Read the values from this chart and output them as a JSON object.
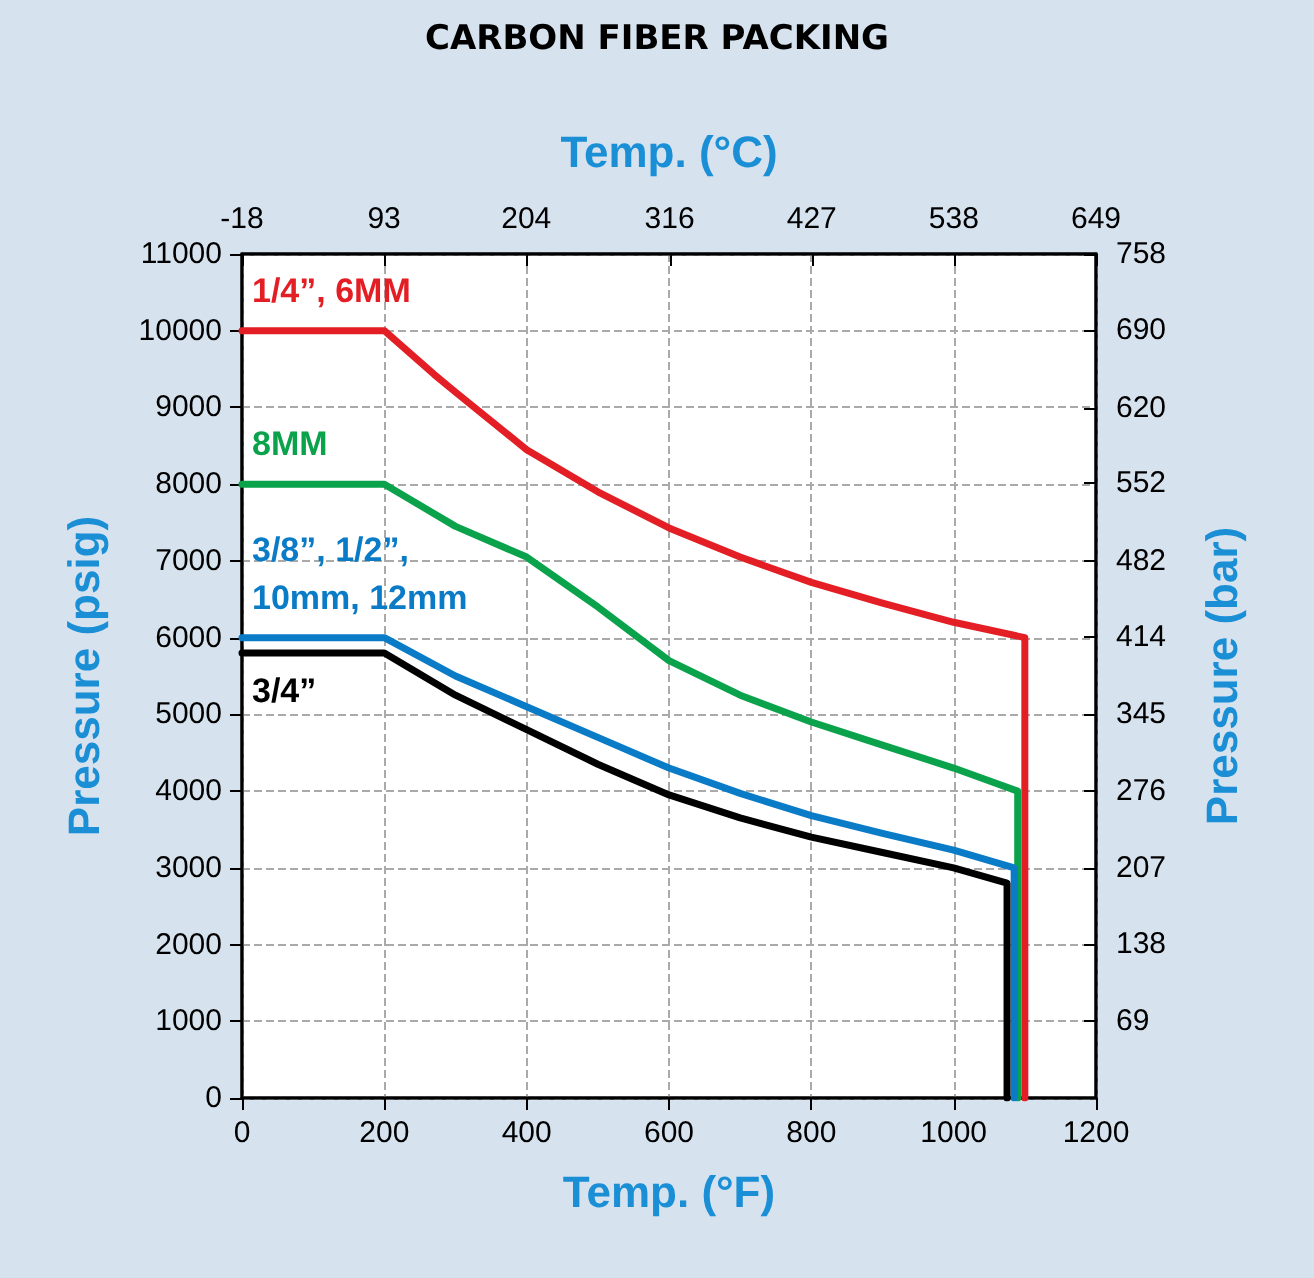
{
  "chart_data": {
    "type": "line",
    "title": "CARBON FIBER PACKING",
    "xlabel": "Temp. (°F)",
    "x2label": "Temp. (°C)",
    "ylabel": "Pressure (psig)",
    "y2label": "Pressure (bar)",
    "xlim": [
      0,
      1200
    ],
    "xticks": [
      0,
      200,
      400,
      600,
      800,
      1000,
      1200
    ],
    "x2lim": [
      -18,
      649
    ],
    "x2ticks": [
      -18,
      93,
      204,
      316,
      427,
      538,
      649
    ],
    "ylim": [
      0,
      11000
    ],
    "yticks": [
      0,
      1000,
      2000,
      3000,
      4000,
      5000,
      6000,
      7000,
      8000,
      9000,
      10000,
      11000
    ],
    "y2lim": [
      0,
      758
    ],
    "y2ticks": [
      69,
      138,
      207,
      276,
      345,
      414,
      482,
      552,
      620,
      690,
      758
    ],
    "grid": true,
    "legend": false,
    "marker": "none",
    "line_style": "solid",
    "series": [
      {
        "name": "1/4”, 6MM",
        "color": "#e31e24",
        "x": [
          0,
          200,
          270,
          300,
          400,
          500,
          600,
          700,
          800,
          900,
          1000,
          1100,
          1100
        ],
        "values": [
          10000,
          10000,
          9430,
          9200,
          8450,
          7900,
          7430,
          7050,
          6720,
          6450,
          6200,
          6000,
          0
        ]
      },
      {
        "name": "8MM",
        "color": "#0aa24b",
        "x": [
          0,
          200,
          300,
          400,
          500,
          600,
          700,
          800,
          900,
          1000,
          1090,
          1090
        ],
        "values": [
          8000,
          8000,
          7450,
          7050,
          6400,
          5700,
          5250,
          4900,
          4600,
          4300,
          4000,
          0
        ]
      },
      {
        "name": "3/8”, 1/2”, 10mm, 12mm",
        "color": "#0a7bc6",
        "x": [
          0,
          200,
          300,
          400,
          500,
          600,
          700,
          800,
          900,
          1000,
          1085,
          1085
        ],
        "values": [
          6000,
          6000,
          5500,
          5100,
          4700,
          4300,
          3970,
          3680,
          3450,
          3230,
          3000,
          0
        ]
      },
      {
        "name": "3/4”",
        "color": "#000000",
        "x": [
          0,
          200,
          300,
          400,
          500,
          600,
          700,
          800,
          900,
          1000,
          1075,
          1075
        ],
        "values": [
          5800,
          5800,
          5250,
          4800,
          4350,
          3950,
          3650,
          3400,
          3200,
          3000,
          2800,
          0
        ]
      }
    ]
  }
}
